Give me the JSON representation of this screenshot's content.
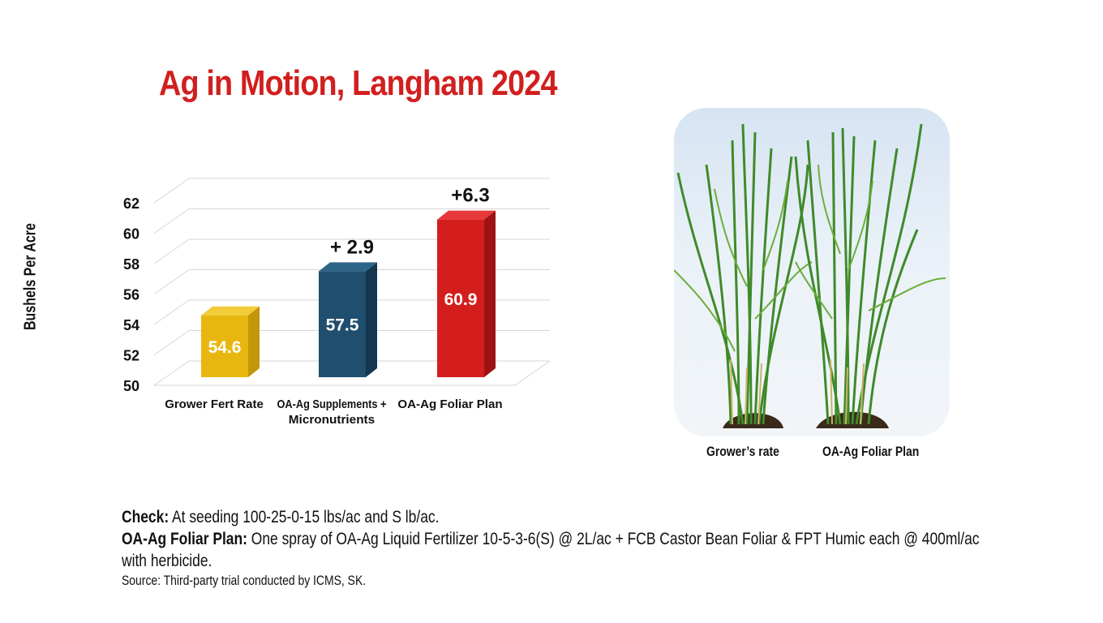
{
  "title": "Ag in Motion, Langham 2024",
  "chart_data": {
    "type": "bar",
    "title": "Ag in Motion, Langham 2024",
    "ylabel": "Bushels Per Acre",
    "xlabel": "",
    "ylim": [
      50,
      62
    ],
    "yticks": [
      50,
      52,
      54,
      56,
      58,
      60,
      62
    ],
    "categories": [
      [
        "Grower Fert Rate"
      ],
      [
        "OA-Ag Supplements +",
        "Micronutrients"
      ],
      [
        "OA-Ag Foliar Plan"
      ]
    ],
    "values": [
      54.6,
      57.5,
      60.9
    ],
    "value_labels": [
      "54.6",
      "57.5",
      "60.9"
    ],
    "increase_labels": [
      "",
      "+ 2.9",
      "+6.3"
    ],
    "colors": [
      "#e8b70f",
      "#1f4e6e",
      "#d41e1e"
    ],
    "side_colors": [
      "#c4960a",
      "#143650",
      "#9e1212"
    ],
    "top_colors": [
      "#f3cc3a",
      "#2d6588",
      "#e63a3a"
    ],
    "grid": true
  },
  "photo": {
    "labels": [
      "Grower’s rate",
      "OA-Ag Foliar Plan"
    ]
  },
  "notes": {
    "check_label": "Check:",
    "check_text": " At seeding 100-25-0-15 lbs/ac and S lb/ac.",
    "plan_label": "OA-Ag Foliar Plan:",
    "plan_text": " One spray of OA-Ag Liquid Fertilizer 10-5-3-6(S) @ 2L/ac + FCB Castor Bean Foliar & FPT Humic each @ 400ml/ac with herbicide.",
    "source": "Source: Third-party trial conducted by ICMS, SK."
  }
}
